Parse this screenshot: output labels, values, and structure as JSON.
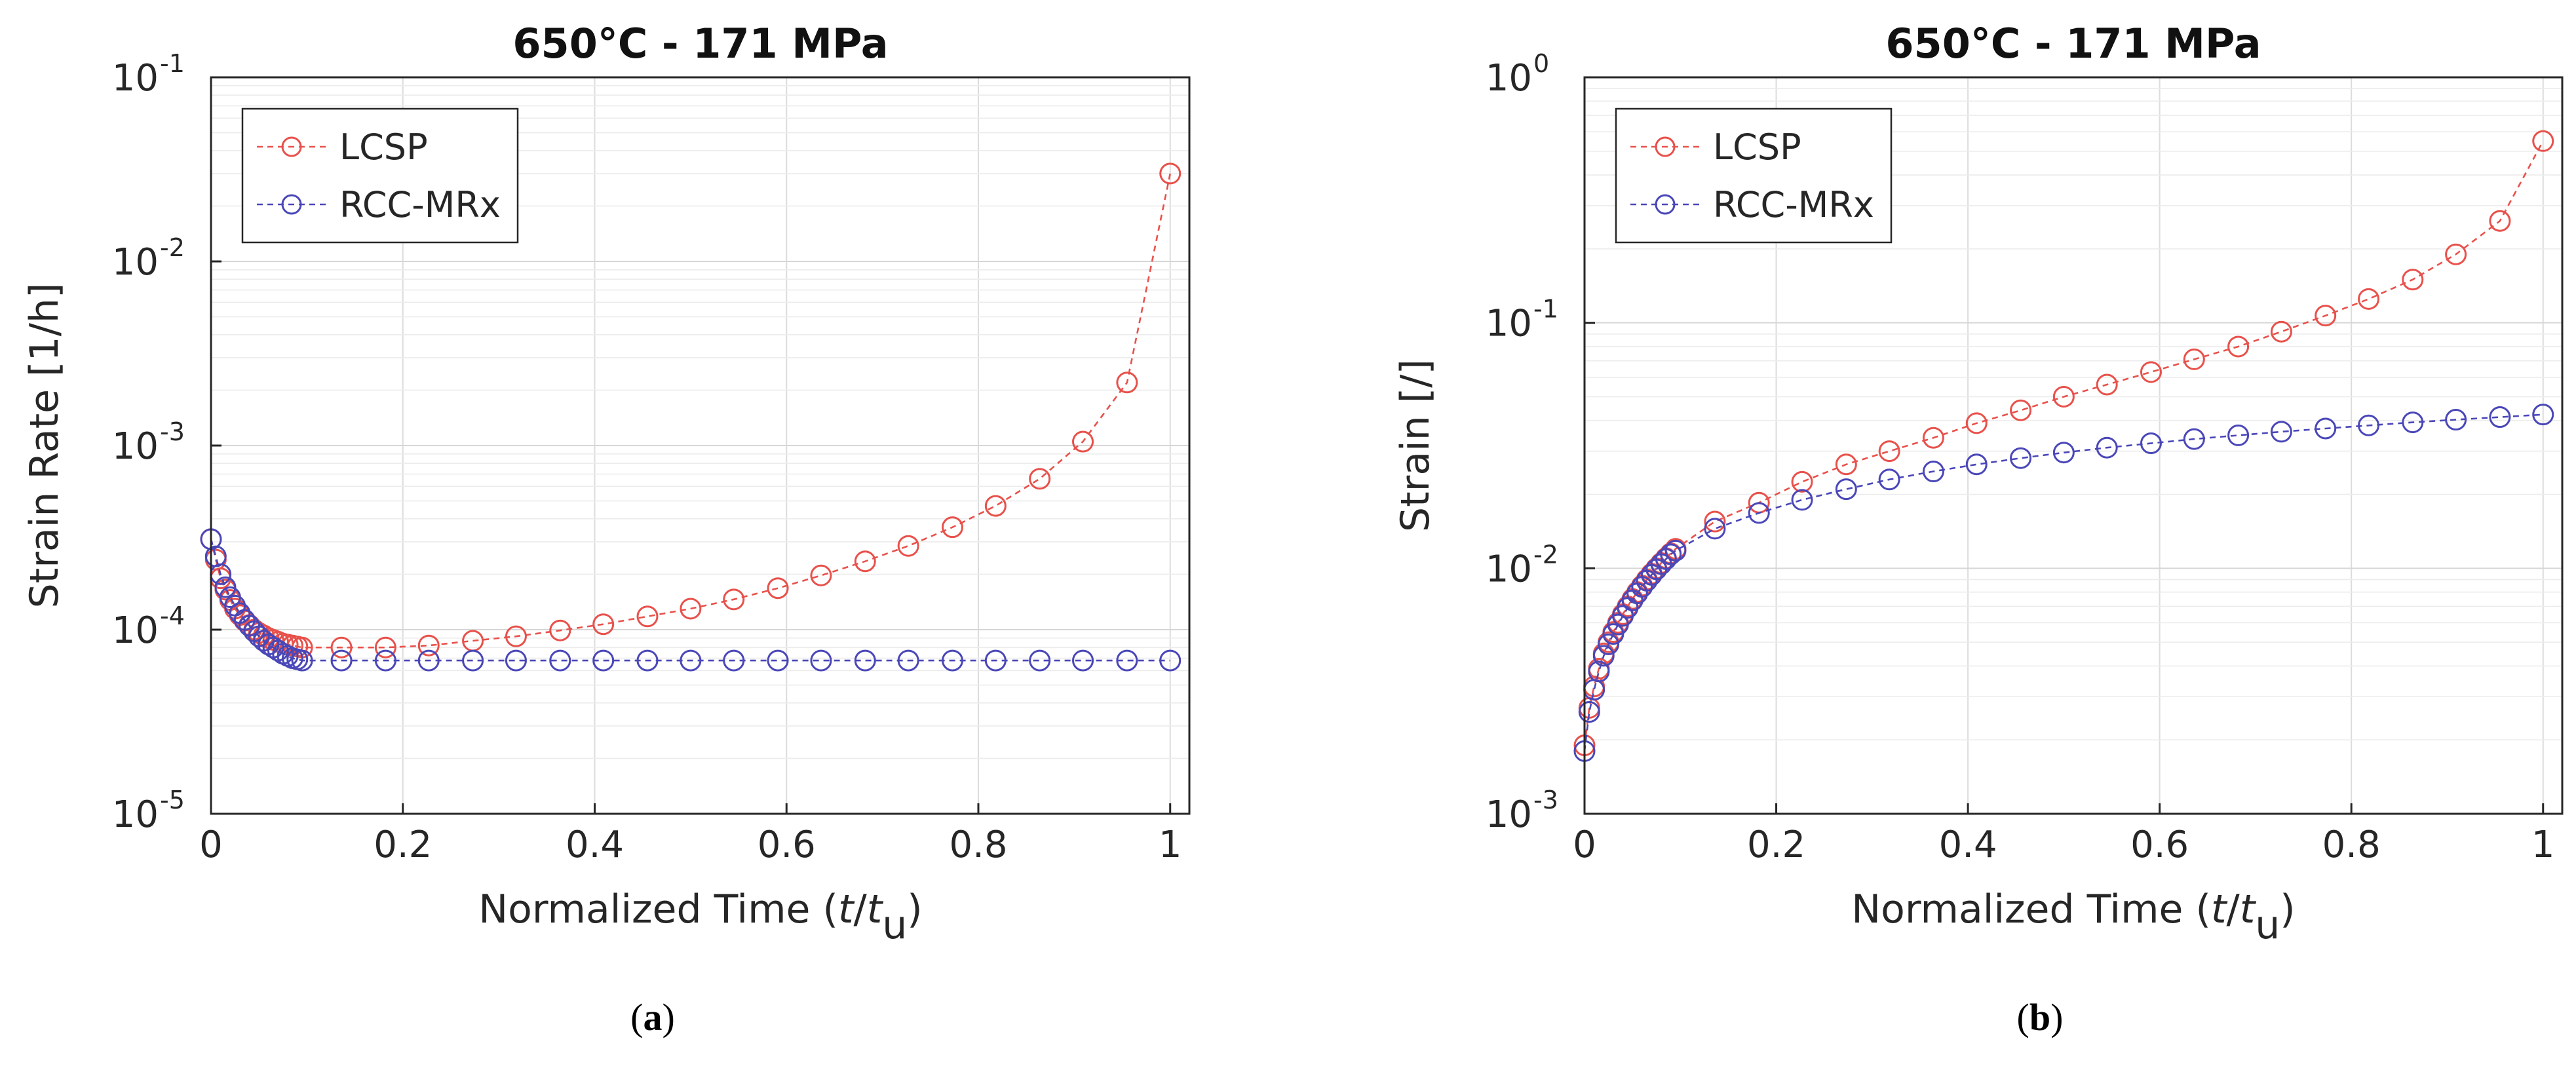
{
  "chart_data": [
    {
      "type": "line",
      "panel": "a",
      "caption": "(a)",
      "title": "650°C - 171 MPa",
      "xlabel": "Normalized Time (t/t_u)",
      "xlabel_parts": {
        "prefix": "Normalized Time (",
        "t": "t",
        "slash": "/",
        "tu": "t",
        "sub": "u",
        "suffix": ")"
      },
      "ylabel": "Strain Rate [1/h]",
      "yscale": "log",
      "xlim": [
        0,
        1.02
      ],
      "ylim_exp": [
        -5,
        -1
      ],
      "xticks": [
        "0",
        "0.2",
        "0.4",
        "0.6",
        "0.8",
        "1"
      ],
      "xtick_values": [
        0,
        0.2,
        0.4,
        0.6,
        0.8,
        1
      ],
      "yticks_base": "10",
      "ytick_exps": [
        "-5",
        "-4",
        "-3",
        "-2",
        "-1"
      ],
      "grid": true,
      "legend_position": "top-left",
      "series": [
        {
          "name": "LCSP",
          "color": "#e8514b",
          "x": [
            0.0,
            0.005,
            0.01,
            0.015,
            0.02,
            0.025,
            0.03,
            0.035,
            0.04,
            0.045,
            0.05,
            0.055,
            0.06,
            0.065,
            0.07,
            0.075,
            0.08,
            0.085,
            0.09,
            0.095,
            0.136,
            0.182,
            0.227,
            0.273,
            0.318,
            0.364,
            0.409,
            0.455,
            0.5,
            0.545,
            0.591,
            0.636,
            0.682,
            0.727,
            0.773,
            0.818,
            0.864,
            0.909,
            0.955,
            1.0
          ],
          "y": [
            0.00031,
            0.00024,
            0.00019,
            0.000165,
            0.000145,
            0.00013,
            0.00012,
            0.000112,
            0.000106,
            0.0001,
            9.6e-05,
            9.3e-05,
            9e-05,
            8.8e-05,
            8.6e-05,
            8.4e-05,
            8.3e-05,
            8.2e-05,
            8.1e-05,
            8e-05,
            8e-05,
            8e-05,
            8.2e-05,
            8.7e-05,
            9.2e-05,
            9.9e-05,
            0.000107,
            0.000118,
            0.00013,
            0.000146,
            0.000168,
            0.000197,
            0.000235,
            0.000285,
            0.00036,
            0.00047,
            0.00066,
            0.00105,
            0.0022,
            0.03
          ]
        },
        {
          "name": "RCC-MRx",
          "color": "#4a47b8",
          "x": [
            0.0,
            0.005,
            0.01,
            0.015,
            0.02,
            0.025,
            0.03,
            0.035,
            0.04,
            0.045,
            0.05,
            0.055,
            0.06,
            0.065,
            0.07,
            0.075,
            0.08,
            0.085,
            0.09,
            0.095,
            0.136,
            0.182,
            0.227,
            0.273,
            0.318,
            0.364,
            0.409,
            0.455,
            0.5,
            0.545,
            0.591,
            0.636,
            0.682,
            0.727,
            0.773,
            0.818,
            0.864,
            0.909,
            0.955,
            1.0
          ],
          "y": [
            0.00031,
            0.00025,
            0.0002,
            0.00017,
            0.00015,
            0.000135,
            0.000123,
            0.000113,
            0.000105,
            9.8e-05,
            9.2e-05,
            8.7e-05,
            8.3e-05,
            8e-05,
            7.7e-05,
            7.4e-05,
            7.2e-05,
            7e-05,
            6.9e-05,
            6.8e-05,
            6.8e-05,
            6.8e-05,
            6.8e-05,
            6.8e-05,
            6.8e-05,
            6.8e-05,
            6.8e-05,
            6.8e-05,
            6.8e-05,
            6.8e-05,
            6.8e-05,
            6.8e-05,
            6.8e-05,
            6.8e-05,
            6.8e-05,
            6.8e-05,
            6.8e-05,
            6.8e-05,
            6.8e-05,
            6.8e-05
          ]
        }
      ]
    },
    {
      "type": "line",
      "panel": "b",
      "caption": "(b)",
      "title": "650°C - 171 MPa",
      "xlabel": "Normalized Time (t/t_u)",
      "xlabel_parts": {
        "prefix": "Normalized Time (",
        "t": "t",
        "slash": "/",
        "tu": "t",
        "sub": "u",
        "suffix": ")"
      },
      "ylabel": "Strain [/]",
      "yscale": "log",
      "xlim": [
        0,
        1.02
      ],
      "ylim_exp": [
        -3,
        0
      ],
      "xticks": [
        "0",
        "0.2",
        "0.4",
        "0.6",
        "0.8",
        "1"
      ],
      "xtick_values": [
        0,
        0.2,
        0.4,
        0.6,
        0.8,
        1
      ],
      "yticks_base": "10",
      "ytick_exps": [
        "-3",
        "-2",
        "-1",
        "0"
      ],
      "grid": true,
      "legend_position": "top-left",
      "series": [
        {
          "name": "LCSP",
          "color": "#e8514b",
          "x": [
            0.0,
            0.005,
            0.01,
            0.015,
            0.02,
            0.025,
            0.03,
            0.035,
            0.04,
            0.045,
            0.05,
            0.055,
            0.06,
            0.065,
            0.07,
            0.075,
            0.08,
            0.085,
            0.09,
            0.095,
            0.136,
            0.182,
            0.227,
            0.273,
            0.318,
            0.364,
            0.409,
            0.455,
            0.5,
            0.545,
            0.591,
            0.636,
            0.682,
            0.727,
            0.773,
            0.818,
            0.864,
            0.909,
            0.955,
            1.0
          ],
          "y": [
            0.0019,
            0.0027,
            0.0033,
            0.0039,
            0.0045,
            0.005,
            0.0055,
            0.006,
            0.0065,
            0.007,
            0.0075,
            0.008,
            0.0085,
            0.009,
            0.0095,
            0.01,
            0.0105,
            0.011,
            0.0115,
            0.012,
            0.0155,
            0.0185,
            0.0225,
            0.0265,
            0.03,
            0.034,
            0.039,
            0.044,
            0.05,
            0.056,
            0.063,
            0.071,
            0.08,
            0.092,
            0.107,
            0.125,
            0.15,
            0.19,
            0.26,
            0.55
          ]
        },
        {
          "name": "RCC-MRx",
          "color": "#4a47b8",
          "x": [
            0.0,
            0.005,
            0.01,
            0.015,
            0.02,
            0.025,
            0.03,
            0.035,
            0.04,
            0.045,
            0.05,
            0.055,
            0.06,
            0.065,
            0.07,
            0.075,
            0.08,
            0.085,
            0.09,
            0.095,
            0.136,
            0.182,
            0.227,
            0.273,
            0.318,
            0.364,
            0.409,
            0.455,
            0.5,
            0.545,
            0.591,
            0.636,
            0.682,
            0.727,
            0.773,
            0.818,
            0.864,
            0.909,
            0.955,
            1.0
          ],
          "y": [
            0.0018,
            0.0026,
            0.0032,
            0.0038,
            0.0044,
            0.0049,
            0.0054,
            0.0059,
            0.0064,
            0.0069,
            0.0074,
            0.0079,
            0.0084,
            0.0089,
            0.0094,
            0.0099,
            0.0104,
            0.0109,
            0.0114,
            0.0118,
            0.0145,
            0.0168,
            0.019,
            0.021,
            0.023,
            0.0248,
            0.0265,
            0.0281,
            0.0296,
            0.031,
            0.0323,
            0.0336,
            0.0348,
            0.036,
            0.0371,
            0.0382,
            0.0393,
            0.0403,
            0.0413,
            0.0423
          ]
        }
      ]
    }
  ]
}
